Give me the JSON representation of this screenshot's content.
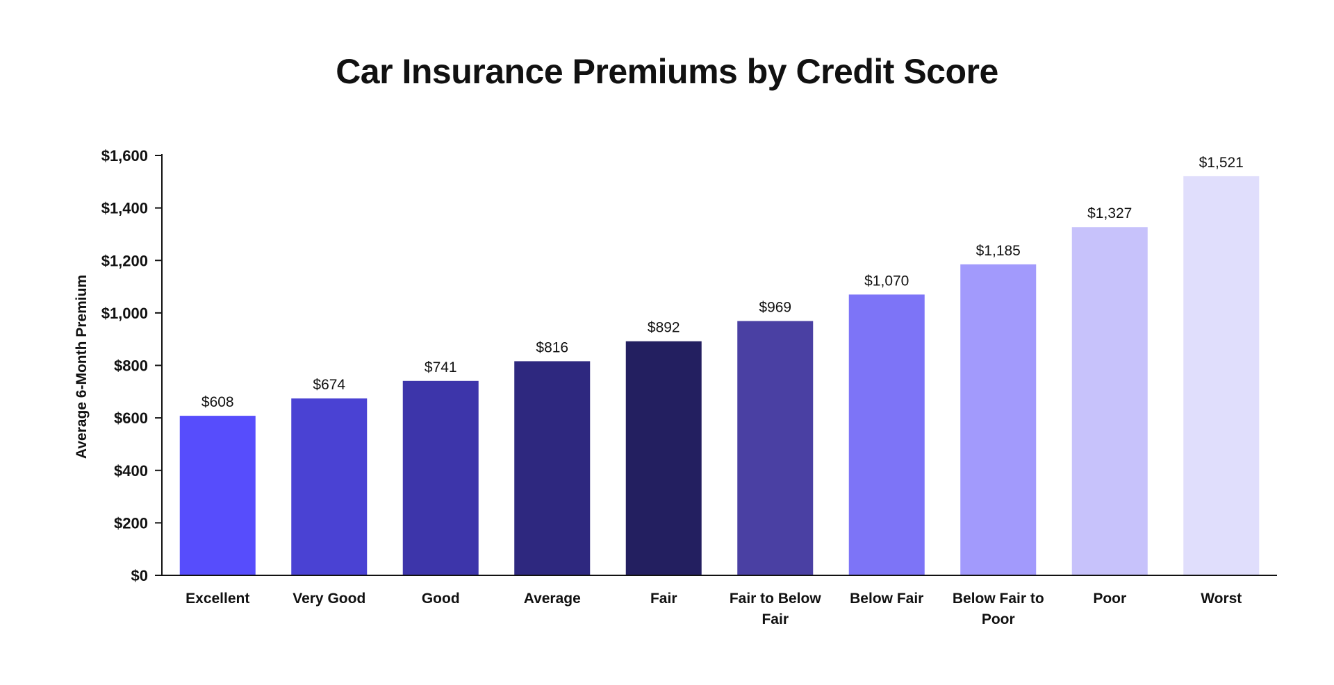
{
  "chart_data": {
    "type": "bar",
    "title": "Car Insurance Premiums by Credit Score",
    "xlabel": "",
    "ylabel": "Average 6-Month Premium",
    "ylim": [
      0,
      1600
    ],
    "yticks": [
      0,
      200,
      400,
      600,
      800,
      1000,
      1200,
      1400,
      1600
    ],
    "ytick_labels": [
      "$0",
      "$200",
      "$400",
      "$600",
      "$800",
      "$1,000",
      "$1,200",
      "$1,400",
      "$1,600"
    ],
    "categories": [
      "Excellent",
      "Very Good",
      "Good",
      "Average",
      "Fair",
      "Fair to Below Fair",
      "Below Fair",
      "Below Fair to Poor",
      "Poor",
      "Worst"
    ],
    "category_lines": [
      [
        "Excellent"
      ],
      [
        "Very Good"
      ],
      [
        "Good"
      ],
      [
        "Average"
      ],
      [
        "Fair"
      ],
      [
        "Fair to Below",
        "Fair"
      ],
      [
        "Below Fair"
      ],
      [
        "Below Fair to",
        "Poor"
      ],
      [
        "Poor"
      ],
      [
        "Worst"
      ]
    ],
    "values": [
      608,
      674,
      741,
      816,
      892,
      969,
      1070,
      1185,
      1327,
      1521
    ],
    "value_labels": [
      "$608",
      "$674",
      "$741",
      "$816",
      "$892",
      "$969",
      "$1,070",
      "$1,185",
      "$1,327",
      "$1,521"
    ],
    "colors": [
      "#574DFC",
      "#4A42D3",
      "#3D35AA",
      "#2E287F",
      "#231F60",
      "#4A40A3",
      "#7D74F7",
      "#A29AFC",
      "#C7C2FB",
      "#E0DEFC"
    ],
    "grid": false,
    "legend": "none"
  }
}
